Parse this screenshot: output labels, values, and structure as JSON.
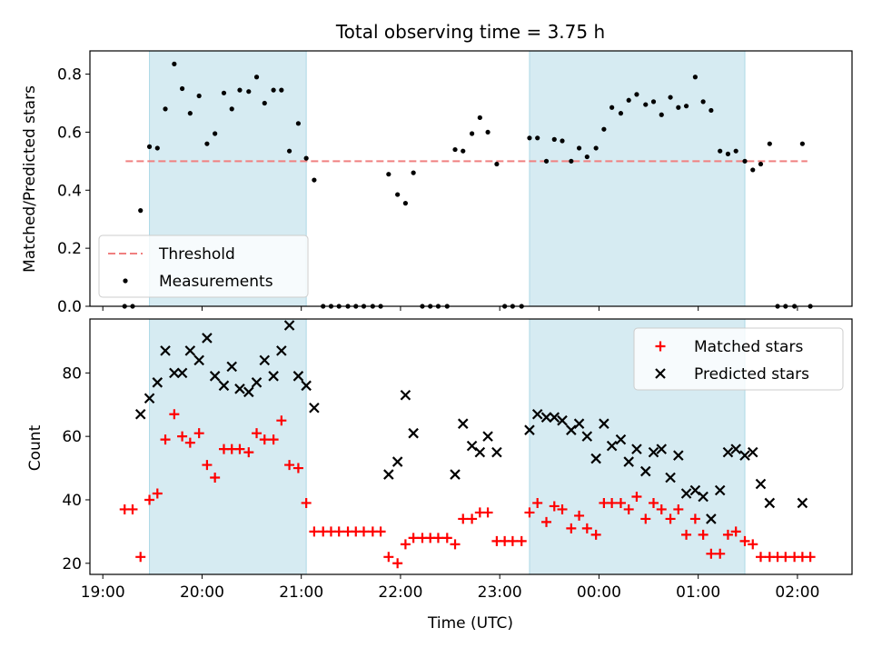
{
  "chart_data": {
    "title": "Total observing time = 3.75 h",
    "xlabel": "Time (UTC)",
    "x_unit": "hours, 19 = 19:00 UTC; values above 24 are after midnight",
    "xlim": [
      18.87,
      26.55
    ],
    "xticks": [
      {
        "v": 19,
        "label": "19:00"
      },
      {
        "v": 20,
        "label": "20:00"
      },
      {
        "v": 21,
        "label": "21:00"
      },
      {
        "v": 22,
        "label": "22:00"
      },
      {
        "v": 23,
        "label": "23:00"
      },
      {
        "v": 24,
        "label": "00:00"
      },
      {
        "v": 25,
        "label": "01:00"
      },
      {
        "v": 26,
        "label": "02:00"
      }
    ],
    "shaded_intervals": [
      [
        19.47,
        21.05
      ],
      [
        23.3,
        25.47
      ]
    ],
    "shade_color": "#add8e6",
    "charts": [
      {
        "type": "scatter",
        "ylabel": "Matched/Predicted stars",
        "ylim": [
          0,
          0.88
        ],
        "yticks": [
          "0.0",
          "0.2",
          "0.4",
          "0.6",
          "0.8"
        ],
        "threshold": {
          "name": "Threshold",
          "value": 0.5,
          "x_range": [
            19.23,
            26.1
          ],
          "color": "#f08080"
        },
        "legend": {
          "placement": "lower-left",
          "entries": [
            "Threshold",
            "Measurements"
          ]
        },
        "series": [
          {
            "name": "Measurements",
            "marker": "dot",
            "color": "#000000",
            "x": [
              19.22,
              19.3,
              19.38,
              19.47,
              19.55,
              19.63,
              19.72,
              19.8,
              19.88,
              19.97,
              20.05,
              20.13,
              20.22,
              20.3,
              20.38,
              20.47,
              20.55,
              20.63,
              20.72,
              20.8,
              20.88,
              20.97,
              21.05,
              21.13,
              21.22,
              21.3,
              21.38,
              21.47,
              21.55,
              21.63,
              21.72,
              21.8,
              21.88,
              21.97,
              22.05,
              22.13,
              22.22,
              22.3,
              22.38,
              22.47,
              22.55,
              22.63,
              22.72,
              22.8,
              22.88,
              22.97,
              23.05,
              23.13,
              23.22,
              23.3,
              23.38,
              23.47,
              23.55,
              23.63,
              23.72,
              23.8,
              23.88,
              23.97,
              24.05,
              24.13,
              24.22,
              24.3,
              24.38,
              24.47,
              24.55,
              24.63,
              24.72,
              24.8,
              24.88,
              24.97,
              25.05,
              25.13,
              25.22,
              25.3,
              25.38,
              25.47,
              25.55,
              25.63,
              25.72,
              25.8,
              25.88,
              25.97,
              26.05,
              26.13
            ],
            "y": [
              0,
              0,
              0.33,
              0.55,
              0.545,
              0.68,
              0.835,
              0.75,
              0.665,
              0.725,
              0.56,
              0.595,
              0.735,
              0.68,
              0.745,
              0.74,
              0.79,
              0.7,
              0.745,
              0.745,
              0.535,
              0.63,
              0.51,
              0.435,
              0,
              0,
              0,
              0,
              0,
              0,
              0,
              0,
              0.455,
              0.385,
              0.355,
              0.46,
              0,
              0,
              0,
              0,
              0.54,
              0.535,
              0.595,
              0.65,
              0.6,
              0.49,
              0,
              0,
              0,
              0.58,
              0.58,
              0.5,
              0.575,
              0.57,
              0.5,
              0.545,
              0.515,
              0.545,
              0.61,
              0.685,
              0.665,
              0.71,
              0.73,
              0.695,
              0.705,
              0.66,
              0.72,
              0.685,
              0.69,
              0.79,
              0.705,
              0.675,
              0.535,
              0.525,
              0.535,
              0.5,
              0.47,
              0.49,
              0.56,
              0,
              0,
              0,
              0.56,
              0
            ]
          }
        ]
      },
      {
        "type": "scatter",
        "ylabel": "Count",
        "ylim": [
          16.5,
          97
        ],
        "yticks": [
          "20",
          "40",
          "60",
          "80"
        ],
        "legend": {
          "placement": "top-right",
          "entries": [
            "Matched stars",
            "Predicted stars"
          ]
        },
        "series": [
          {
            "name": "Matched stars",
            "marker": "plus",
            "color": "#ff0000",
            "x": [
              19.22,
              19.3,
              19.38,
              19.47,
              19.55,
              19.63,
              19.72,
              19.8,
              19.88,
              19.97,
              20.05,
              20.13,
              20.22,
              20.3,
              20.38,
              20.47,
              20.55,
              20.63,
              20.72,
              20.8,
              20.88,
              20.97,
              21.05,
              21.13,
              21.22,
              21.3,
              21.38,
              21.47,
              21.55,
              21.63,
              21.72,
              21.8,
              21.88,
              21.97,
              22.05,
              22.13,
              22.22,
              22.3,
              22.38,
              22.47,
              22.55,
              22.63,
              22.72,
              22.8,
              22.88,
              22.97,
              23.05,
              23.13,
              23.22,
              23.3,
              23.38,
              23.47,
              23.55,
              23.63,
              23.72,
              23.8,
              23.88,
              23.97,
              24.05,
              24.13,
              24.22,
              24.3,
              24.38,
              24.47,
              24.55,
              24.63,
              24.72,
              24.8,
              24.88,
              24.97,
              25.05,
              25.13,
              25.22,
              25.3,
              25.38,
              25.47,
              25.55,
              25.63,
              25.72,
              25.8,
              25.88,
              25.97,
              26.05,
              26.13
            ],
            "y": [
              37,
              37,
              22,
              40,
              42,
              59,
              67,
              60,
              58,
              61,
              51,
              47,
              56,
              56,
              56,
              55,
              61,
              59,
              59,
              65,
              51,
              50,
              39,
              30,
              30,
              30,
              30,
              30,
              30,
              30,
              30,
              30,
              22,
              20,
              26,
              28,
              28,
              28,
              28,
              28,
              26,
              34,
              34,
              36,
              36,
              27,
              27,
              27,
              27,
              36,
              39,
              33,
              38,
              37,
              31,
              35,
              31,
              29,
              39,
              39,
              39,
              37,
              41,
              34,
              39,
              37,
              34,
              37,
              29,
              34,
              29,
              23,
              23,
              29,
              30,
              27,
              26,
              22,
              22,
              22,
              22,
              22,
              22,
              22
            ]
          },
          {
            "name": "Predicted stars",
            "marker": "x",
            "color": "#000000",
            "x": [
              19.38,
              19.47,
              19.55,
              19.63,
              19.72,
              19.8,
              19.88,
              19.97,
              20.05,
              20.13,
              20.22,
              20.3,
              20.38,
              20.47,
              20.55,
              20.63,
              20.72,
              20.8,
              20.88,
              20.97,
              21.05,
              21.13,
              21.88,
              21.97,
              22.05,
              22.13,
              22.55,
              22.63,
              22.72,
              22.8,
              22.88,
              22.97,
              23.3,
              23.38,
              23.47,
              23.55,
              23.63,
              23.72,
              23.8,
              23.88,
              23.97,
              24.05,
              24.13,
              24.22,
              24.3,
              24.38,
              24.47,
              24.55,
              24.63,
              24.72,
              24.8,
              24.88,
              24.97,
              25.05,
              25.13,
              25.22,
              25.3,
              25.38,
              25.47,
              25.55,
              25.63,
              25.72,
              26.05
            ],
            "y": [
              67,
              72,
              77,
              87,
              80,
              80,
              87,
              84,
              91,
              79,
              76,
              82,
              75,
              74,
              77,
              84,
              79,
              87,
              95,
              79,
              76,
              69,
              48,
              52,
              73,
              61,
              48,
              64,
              57,
              55,
              60,
              55,
              62,
              67,
              66,
              66,
              65,
              62,
              64,
              60,
              53,
              64,
              57,
              59,
              52,
              56,
              49,
              55,
              56,
              47,
              54,
              42,
              43,
              41,
              34,
              43,
              55,
              56,
              54,
              55,
              45,
              39,
              39
            ]
          }
        ]
      }
    ]
  }
}
